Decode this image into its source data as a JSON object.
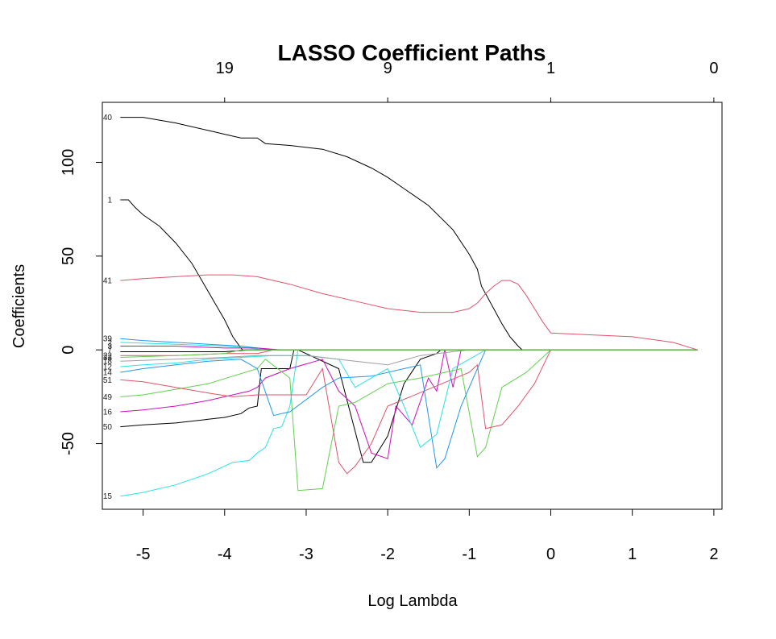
{
  "chart_data": {
    "type": "line",
    "title": "LASSO Coefficient Paths",
    "xlabel": "Log Lambda",
    "ylabel": "Coefficients",
    "xlim": [
      -5.5,
      2.1
    ],
    "ylim": [
      -85,
      132
    ],
    "x_ticks": [
      -5,
      -4,
      -3,
      -2,
      -1,
      0,
      1,
      2
    ],
    "y_ticks": [
      -50,
      0,
      50,
      100
    ],
    "top_axis": {
      "ticks": [
        {
          "x": -4,
          "label": "19"
        },
        {
          "x": -2,
          "label": "9"
        },
        {
          "x": 0,
          "label": "1"
        },
        {
          "x": 2,
          "label": "0"
        }
      ]
    },
    "grid": false,
    "series": [
      {
        "name": "40",
        "color": "#000000",
        "x": [
          -5.28,
          -5.0,
          -4.6,
          -4.2,
          -4.0,
          -3.8,
          -3.6,
          -3.5,
          -3.2,
          -2.8,
          -2.5,
          -2.2,
          -2.0,
          -1.8,
          -1.5,
          -1.2,
          -1.0,
          -0.9,
          -0.85,
          -0.7,
          -0.6,
          -0.5,
          -0.4,
          -0.35,
          -0.3,
          1.8
        ],
        "y": [
          124,
          124,
          121,
          117,
          115,
          113,
          113,
          110,
          109,
          107,
          103,
          97,
          92,
          86,
          77,
          64,
          51,
          43,
          34,
          22,
          14,
          7,
          2,
          0,
          0,
          0
        ]
      },
      {
        "name": "1",
        "color": "#000000",
        "x": [
          -5.28,
          -5.18,
          -5.1,
          -5.0,
          -4.8,
          -4.6,
          -4.4,
          -4.2,
          -4.0,
          -3.9,
          -3.8,
          -3.78,
          1.8
        ],
        "y": [
          80,
          80,
          76,
          72,
          66,
          57,
          46,
          31,
          16,
          7,
          1,
          0,
          0
        ]
      },
      {
        "name": "41",
        "color": "#DF536B",
        "x": [
          -5.28,
          -5.0,
          -4.6,
          -4.2,
          -3.9,
          -3.6,
          -3.4,
          -3.2,
          -2.8,
          -2.4,
          -2.0,
          -1.6,
          -1.2,
          -1.0,
          -0.9,
          -0.8,
          -0.7,
          -0.6,
          -0.5,
          -0.4,
          -0.3,
          -0.2,
          -0.1,
          0.0,
          0.5,
          1.0,
          1.5,
          1.8
        ],
        "y": [
          37,
          38,
          39,
          40,
          40,
          39,
          37,
          35,
          30,
          26,
          22,
          20,
          20,
          22,
          25,
          30,
          34,
          37,
          37,
          35,
          29,
          22,
          15,
          9,
          8,
          7,
          4,
          0
        ]
      },
      {
        "name": "15",
        "color": "#28E2E5",
        "x": [
          -5.28,
          -5.0,
          -4.6,
          -4.2,
          -3.9,
          -3.7,
          -3.6,
          -3.5,
          -3.4,
          -3.3,
          -3.2,
          -3.1,
          1.8
        ],
        "y": [
          -78,
          -76,
          -72,
          -66,
          -60,
          -59,
          -55,
          -52,
          -42,
          -41,
          -30,
          0,
          0
        ]
      },
      {
        "name": "50",
        "color": "#000000",
        "x": [
          -5.28,
          -5.0,
          -4.6,
          -4.2,
          -4.0,
          -3.8,
          -3.7,
          -3.6,
          -3.55,
          -3.2,
          -3.15,
          -3.1,
          -2.6,
          -2.3,
          -2.2,
          -2.0,
          -1.8,
          -1.6,
          -1.4,
          -1.35,
          1.8
        ],
        "y": [
          -41,
          -40,
          -39,
          -37,
          -36,
          -34,
          -31,
          -30,
          -10,
          -10,
          0,
          0,
          -10,
          -60,
          -60,
          -46,
          -18,
          -5,
          -2,
          0,
          0
        ]
      },
      {
        "name": "16",
        "color": "#CD0BBC",
        "x": [
          -5.28,
          -5.0,
          -4.6,
          -4.2,
          -3.9,
          -3.7,
          -3.6,
          -3.5,
          -3.2,
          -2.8,
          -2.6,
          -2.4,
          -2.2,
          -2.0,
          -1.9,
          -1.7,
          -1.5,
          -1.4,
          -1.3,
          -1.2,
          -1.1,
          1.8
        ],
        "y": [
          -33,
          -32,
          -30,
          -27,
          -24,
          -22,
          -20,
          -15,
          -10,
          -5,
          -22,
          -30,
          -55,
          -58,
          -30,
          -40,
          -15,
          -22,
          0,
          -20,
          0,
          0
        ]
      },
      {
        "name": "49",
        "color": "#61D04F",
        "x": [
          -5.28,
          -5.0,
          -4.6,
          -4.2,
          -3.9,
          -3.6,
          -3.5,
          -3.2,
          -3.1,
          -2.8,
          -2.6,
          -2.4,
          -2.0,
          -1.6,
          -1.3,
          -1.1,
          -0.9,
          -0.8,
          -0.6,
          -0.3,
          0.0,
          1.8
        ],
        "y": [
          -25,
          -24,
          -21,
          -18,
          -14,
          -10,
          -5,
          -15,
          -75,
          -74,
          -30,
          -28,
          -18,
          -15,
          -12,
          -10,
          -57,
          -52,
          -20,
          -12,
          0,
          0
        ]
      },
      {
        "name": "51",
        "color": "#DF536B",
        "x": [
          -5.28,
          -5.0,
          -4.6,
          -4.2,
          -3.9,
          -3.6,
          -3.0,
          -2.8,
          -2.6,
          -2.5,
          -2.4,
          -2.2,
          -2.0,
          -1.0,
          -0.9,
          -0.8,
          -0.6,
          -0.4,
          -0.2,
          0.0,
          1.8
        ],
        "y": [
          -16,
          -17,
          -20,
          -23,
          -25,
          -24,
          -24,
          -10,
          -60,
          -66,
          -62,
          -50,
          -30,
          -12,
          -8,
          -42,
          -40,
          -30,
          -18,
          0,
          0
        ]
      },
      {
        "name": "14",
        "color": "#2297E6",
        "x": [
          -5.28,
          -5.0,
          -4.6,
          -4.2,
          -3.8,
          -3.6,
          -3.4,
          -3.2,
          -2.8,
          -2.6,
          -2.2,
          -1.8,
          -1.6,
          -1.4,
          -1.3,
          -1.1,
          -1.0,
          -0.9,
          -0.8,
          1.8
        ],
        "y": [
          -12,
          -10,
          -8,
          -6,
          -5,
          -10,
          -35,
          -33,
          -20,
          -15,
          -14,
          -10,
          -8,
          -63,
          -58,
          -30,
          -20,
          -10,
          0,
          0
        ]
      },
      {
        "name": "12",
        "color": "#28E2E5",
        "x": [
          -5.28,
          -5.0,
          -4.6,
          -4.2,
          -3.8,
          -3.4,
          -3.0,
          -2.6,
          -2.4,
          -2.0,
          -1.8,
          -1.6,
          -1.4,
          -1.2,
          -1.0,
          -0.8,
          1.8
        ],
        "y": [
          -9,
          -8,
          -7,
          -5,
          -4,
          -3,
          -3,
          -5,
          -20,
          -10,
          -30,
          -52,
          -45,
          -10,
          -5,
          0,
          0
        ]
      },
      {
        "name": "18",
        "color": "#9E9E9E",
        "x": [
          -5.28,
          -4.6,
          -4.0,
          -3.6,
          -3.0,
          -2.4,
          -2.0,
          -1.6,
          -1.2,
          -1.0,
          1.8
        ],
        "y": [
          -6,
          -5,
          -4,
          -3,
          -3,
          -6,
          -8,
          -3,
          -1,
          0,
          0
        ]
      },
      {
        "name": "39",
        "color": "#2297E6",
        "x": [
          -5.28,
          -5.0,
          -4.6,
          -4.2,
          -3.8,
          -3.6,
          -3.4,
          -3.2,
          1.8
        ],
        "y": [
          6,
          5,
          4,
          3,
          2,
          1,
          0,
          0,
          0
        ]
      },
      {
        "name": "2",
        "color": "#28E2E5",
        "x": [
          -5.28,
          -4.6,
          -4.0,
          -3.7,
          -3.5,
          1.8
        ],
        "y": [
          4,
          3,
          2,
          1,
          0,
          0
        ]
      },
      {
        "name": "3",
        "color": "#CD0BBC",
        "x": [
          -5.28,
          -4.6,
          -4.0,
          -3.6,
          -3.3,
          1.8
        ],
        "y": [
          2,
          2,
          1,
          1,
          0,
          0
        ]
      },
      {
        "name": "7",
        "color": "#000000",
        "x": [
          -5.28,
          -4.6,
          -4.0,
          -3.7,
          1.8
        ],
        "y": [
          -1,
          -1,
          -1,
          0,
          0
        ]
      },
      {
        "name": "22",
        "color": "#DF536B",
        "x": [
          -5.28,
          -4.6,
          -4.0,
          -3.6,
          -3.4,
          1.8
        ],
        "y": [
          -3,
          -3,
          -2,
          -2,
          0,
          0
        ]
      },
      {
        "name": "33",
        "color": "#61D04F",
        "x": [
          -5.28,
          -4.6,
          -4.0,
          -3.8,
          1.8
        ],
        "y": [
          -4,
          -3,
          -2,
          0,
          0
        ]
      }
    ],
    "labels": [
      {
        "text": "40",
        "y": 124
      },
      {
        "text": "1",
        "y": 80
      },
      {
        "text": "41",
        "y": 37
      },
      {
        "text": "39",
        "y": 6
      },
      {
        "text": "2",
        "y": 4
      },
      {
        "text": "3",
        "y": 2
      },
      {
        "text": "7",
        "y": 0
      },
      {
        "text": "22",
        "y": -3
      },
      {
        "text": "33",
        "y": -4
      },
      {
        "text": "18",
        "y": -6
      },
      {
        "text": "12",
        "y": -9
      },
      {
        "text": "14",
        "y": -12
      },
      {
        "text": "51",
        "y": -16
      },
      {
        "text": "49",
        "y": -25
      },
      {
        "text": "16",
        "y": -33
      },
      {
        "text": "50",
        "y": -41
      },
      {
        "text": "15",
        "y": -78
      }
    ]
  }
}
